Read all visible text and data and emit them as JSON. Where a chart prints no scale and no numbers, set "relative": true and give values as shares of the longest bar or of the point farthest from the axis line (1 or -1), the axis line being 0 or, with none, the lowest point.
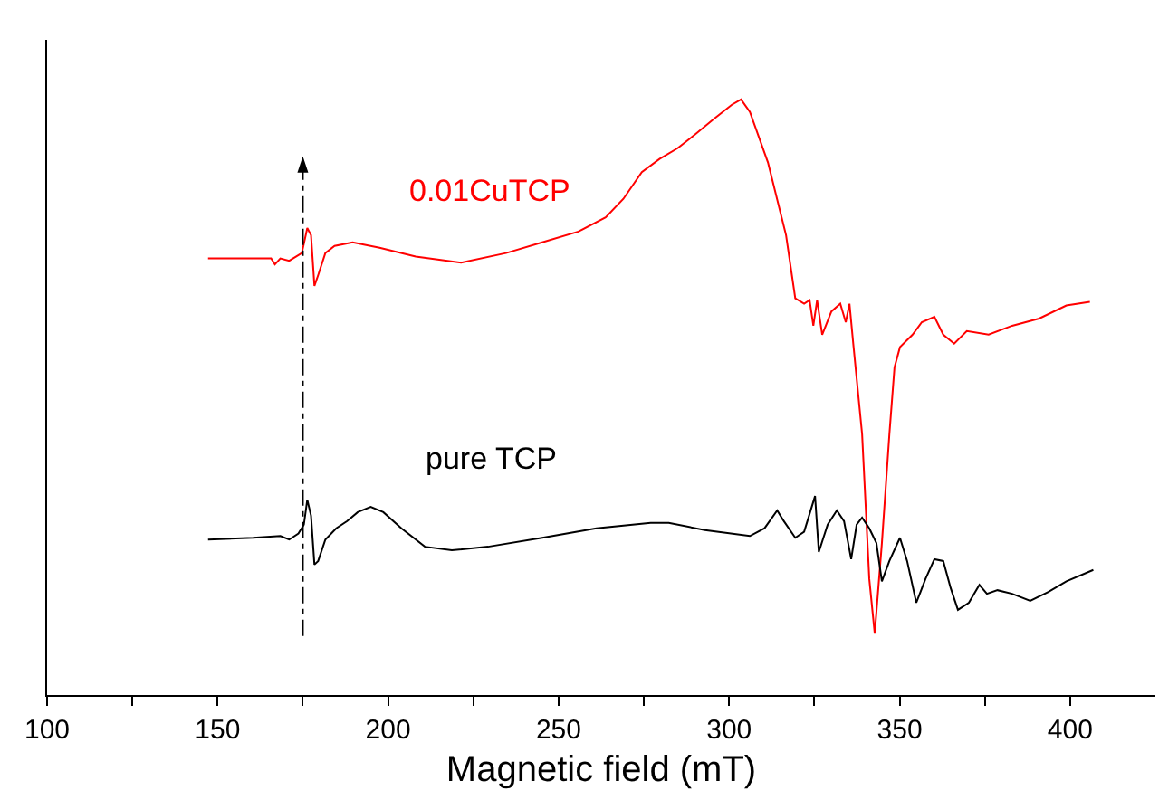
{
  "chart_data": {
    "type": "line",
    "relative": true,
    "xlabel": "Magnetic field (mT)",
    "xlim": [
      100,
      425
    ],
    "xticks": [
      100,
      {
        "value": 125,
        "label": null
      },
      150,
      {
        "value": 175,
        "label": null
      },
      200,
      {
        "value": 225,
        "label": null
      },
      250,
      {
        "value": 275,
        "label": null
      },
      300,
      {
        "value": 325,
        "label": null
      },
      350,
      {
        "value": 375,
        "label": null
      },
      400
    ],
    "grid": false,
    "legend": false,
    "marker": "none",
    "line_style": "solid",
    "ref_lines": [
      {
        "axis": "x",
        "value": 175,
        "color": "#000000",
        "line_style": "dashed"
      }
    ],
    "series": [
      {
        "name": "0.01CuTCP",
        "color": "#ff0000",
        "x": [
          147.2,
          165.7,
          166.8,
          168.4,
          171.0,
          174.7,
          176.3,
          177.4,
          178.4,
          179.5,
          181.6,
          184.3,
          189.6,
          197.5,
          208.1,
          221.4,
          234.6,
          245.2,
          255.8,
          263.8,
          269.0,
          274.4,
          279.6,
          284.9,
          290.2,
          295.5,
          300.8,
          303.5,
          306.1,
          311.4,
          316.7,
          319.4,
          322.0,
          323.6,
          324.7,
          325.8,
          327.3,
          330.0,
          332.6,
          334.2,
          335.3,
          336.4,
          339.0,
          341.1,
          342.7,
          344.8,
          347.0,
          348.5,
          350.1,
          353.8,
          356.5,
          360.2,
          362.8,
          366.0,
          369.7,
          376.1,
          383.0,
          390.9,
          398.9,
          405.8
        ],
        "values": [
          0.733,
          0.733,
          0.723,
          0.733,
          0.729,
          0.742,
          0.784,
          0.772,
          0.687,
          0.705,
          0.742,
          0.754,
          0.76,
          0.751,
          0.736,
          0.726,
          0.742,
          0.76,
          0.778,
          0.802,
          0.833,
          0.878,
          0.9,
          0.918,
          0.942,
          0.967,
          0.991,
          1.0,
          0.979,
          0.894,
          0.772,
          0.666,
          0.657,
          0.663,
          0.62,
          0.663,
          0.605,
          0.644,
          0.657,
          0.626,
          0.657,
          0.59,
          0.438,
          0.195,
          0.103,
          0.255,
          0.438,
          0.55,
          0.584,
          0.605,
          0.626,
          0.635,
          0.605,
          0.59,
          0.611,
          0.605,
          0.62,
          0.632,
          0.654,
          0.66
        ]
      },
      {
        "name": "pure TCP",
        "color": "#000000",
        "x": [
          147.2,
          160.4,
          168.4,
          171.0,
          173.7,
          175.3,
          176.3,
          177.4,
          178.4,
          179.5,
          181.6,
          184.8,
          188.0,
          191.1,
          194.9,
          198.6,
          203.9,
          210.8,
          218.7,
          229.3,
          245.2,
          261.1,
          277.0,
          282.3,
          292.9,
          306.1,
          310.4,
          314.1,
          315.7,
          319.4,
          322.0,
          325.2,
          326.3,
          328.9,
          331.6,
          333.7,
          335.8,
          337.4,
          339.0,
          341.1,
          343.2,
          344.8,
          347.0,
          350.1,
          352.2,
          354.9,
          357.6,
          360.2,
          362.8,
          365.0,
          367.1,
          370.3,
          373.4,
          375.6,
          378.7,
          383.0,
          388.3,
          393.6,
          398.9,
          406.8
        ],
        "values": [
          0.261,
          0.264,
          0.267,
          0.261,
          0.271,
          0.286,
          0.328,
          0.301,
          0.219,
          0.225,
          0.261,
          0.28,
          0.292,
          0.307,
          0.316,
          0.307,
          0.28,
          0.249,
          0.243,
          0.249,
          0.264,
          0.28,
          0.289,
          0.289,
          0.277,
          0.267,
          0.28,
          0.31,
          0.295,
          0.264,
          0.274,
          0.334,
          0.24,
          0.286,
          0.31,
          0.292,
          0.228,
          0.286,
          0.298,
          0.28,
          0.255,
          0.191,
          0.225,
          0.264,
          0.225,
          0.155,
          0.195,
          0.228,
          0.225,
          0.179,
          0.143,
          0.155,
          0.185,
          0.17,
          0.176,
          0.17,
          0.158,
          0.173,
          0.191,
          0.21
        ]
      }
    ]
  }
}
